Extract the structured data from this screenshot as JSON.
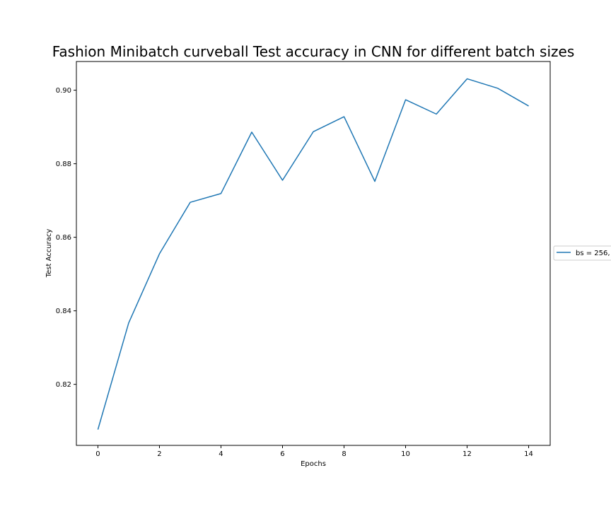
{
  "chart_data": {
    "type": "line",
    "title": "Fashion Minibatch curveball Test accuracy in CNN for different batch sizes",
    "xlabel": "Epochs",
    "ylabel": "Test Accuracy",
    "xlim": [
      -0.7,
      14.7
    ],
    "ylim": [
      0.8034,
      0.9078
    ],
    "x_ticks": [
      0,
      2,
      4,
      6,
      8,
      10,
      12,
      14
    ],
    "x_tick_labels": [
      "0",
      "2",
      "4",
      "6",
      "8",
      "10",
      "12",
      "14"
    ],
    "y_ticks": [
      0.82,
      0.84,
      0.86,
      0.88,
      0.9
    ],
    "y_tick_labels": [
      "0.82",
      "0.84",
      "0.86",
      "0.88",
      "0.90"
    ],
    "grid": false,
    "legend_position": "right",
    "series": [
      {
        "name": "bs = 256,",
        "color": "#1f77b4",
        "x": [
          0,
          1,
          2,
          3,
          4,
          5,
          6,
          7,
          8,
          9,
          10,
          11,
          12,
          13,
          14
        ],
        "values": [
          0.8077,
          0.8367,
          0.8555,
          0.8695,
          0.8719,
          0.8886,
          0.8755,
          0.8887,
          0.8928,
          0.8752,
          0.8974,
          0.8935,
          0.9031,
          0.9005,
          0.8957
        ]
      }
    ]
  }
}
